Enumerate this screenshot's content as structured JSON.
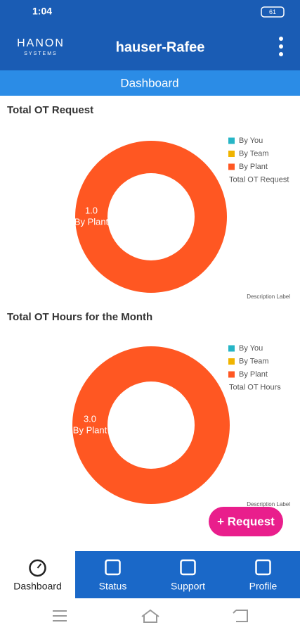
{
  "status_bar": {
    "time": "1:04",
    "battery": "61"
  },
  "app_bar": {
    "logo": "HANON",
    "logo_sub": "SYSTEMS",
    "title": "hauser-Rafee"
  },
  "tab": {
    "title": "Dashboard"
  },
  "chart_data": [
    {
      "type": "pie",
      "hole": true,
      "title": "Total OT Request",
      "categories": [
        "By You",
        "By Team",
        "By Plant"
      ],
      "values": [
        0,
        0,
        1
      ],
      "value_labels": [
        "0.0",
        "0.0",
        "1.0"
      ],
      "colors": [
        "#26b5c6",
        "#f0b400",
        "#ff5722"
      ],
      "dataset_label": "Total OT Request",
      "description": "Description Label"
    },
    {
      "type": "pie",
      "hole": true,
      "title": "Total OT Hours for the Month",
      "categories": [
        "By You",
        "By Team",
        "By Plant"
      ],
      "values": [
        0,
        0,
        3
      ],
      "value_labels": [
        "0.0",
        "0.0",
        "3.0"
      ],
      "colors": [
        "#26b5c6",
        "#f0b400",
        "#ff5722"
      ],
      "dataset_label": "Total OT Hours",
      "description": "Description Label"
    }
  ],
  "request_button": {
    "label": "+ Request"
  },
  "bottom_nav": {
    "items": [
      "Dashboard",
      "Status",
      "Support",
      "Profile"
    ]
  }
}
